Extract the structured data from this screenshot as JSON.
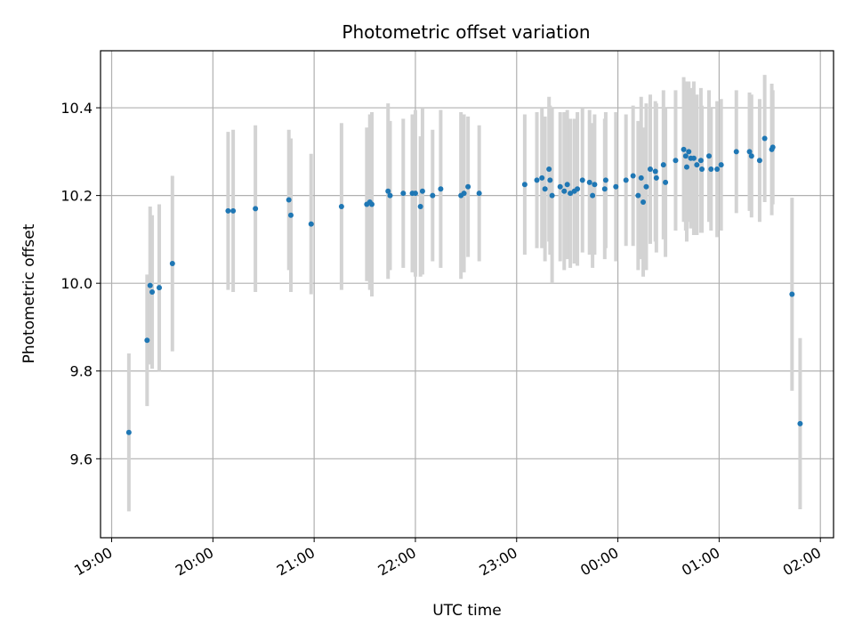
{
  "chart_data": {
    "type": "scatter",
    "title": "Photometric offset variation",
    "xlabel": "UTC time",
    "ylabel": "Photometric offset",
    "grid": true,
    "x_tick_labels": [
      "19:00",
      "20:00",
      "21:00",
      "22:00",
      "23:00",
      "00:00",
      "01:00",
      "02:00"
    ],
    "y_tick_labels": [
      "9.6",
      "9.8",
      "10.0",
      "10.2",
      "10.4"
    ],
    "y_ticks": [
      9.6,
      9.8,
      10.0,
      10.2,
      10.4
    ],
    "xlim_hours": [
      18.89,
      26.13
    ],
    "ylim": [
      9.42,
      10.53
    ],
    "colors": {
      "points": "#1f77b4",
      "error_bars": "#d3d3d3",
      "grid": "#b0b0b0"
    },
    "series": [
      {
        "hours": [
          19.17,
          19.35,
          19.38,
          19.4,
          19.47,
          19.6,
          20.15,
          20.2,
          20.42,
          20.75,
          20.77,
          20.97,
          21.27,
          21.52,
          21.55,
          21.57,
          21.73,
          21.75,
          21.88,
          21.97,
          22.0,
          22.07,
          22.05,
          22.17,
          22.25,
          22.45,
          22.48,
          22.52,
          22.63,
          23.08,
          23.2,
          23.25,
          23.28,
          23.32,
          23.33,
          23.35,
          23.43,
          23.47,
          23.5,
          23.53,
          23.57,
          23.6,
          23.65,
          23.72,
          23.75,
          23.77,
          23.87,
          23.88,
          23.98,
          24.08,
          24.15,
          24.2,
          24.23,
          24.25,
          24.28,
          24.32,
          24.37,
          24.38,
          24.45,
          24.47,
          24.57,
          24.65,
          24.67,
          24.68,
          24.7,
          24.72,
          24.75,
          24.78,
          24.82,
          24.83,
          24.9,
          24.92,
          24.98,
          25.02,
          25.17,
          25.3,
          25.32,
          25.4,
          25.45,
          25.52,
          25.53,
          25.72,
          25.8
        ],
        "y": [
          9.66,
          9.87,
          9.995,
          9.98,
          9.99,
          10.045,
          10.165,
          10.165,
          10.17,
          10.19,
          10.155,
          10.135,
          10.175,
          10.18,
          10.185,
          10.18,
          10.21,
          10.2,
          10.205,
          10.205,
          10.205,
          10.21,
          10.175,
          10.2,
          10.215,
          10.2,
          10.205,
          10.22,
          10.205,
          10.225,
          10.235,
          10.24,
          10.215,
          10.26,
          10.235,
          10.2,
          10.22,
          10.21,
          10.225,
          10.205,
          10.21,
          10.215,
          10.235,
          10.23,
          10.2,
          10.225,
          10.215,
          10.235,
          10.22,
          10.235,
          10.245,
          10.2,
          10.24,
          10.185,
          10.22,
          10.26,
          10.255,
          10.24,
          10.27,
          10.23,
          10.28,
          10.305,
          10.29,
          10.265,
          10.3,
          10.285,
          10.285,
          10.27,
          10.28,
          10.26,
          10.29,
          10.26,
          10.26,
          10.27,
          10.3,
          10.3,
          10.29,
          10.28,
          10.33,
          10.305,
          10.31,
          9.975,
          9.68
        ],
        "err": [
          0.18,
          0.15,
          0.18,
          0.175,
          0.19,
          0.2,
          0.18,
          0.185,
          0.19,
          0.16,
          0.175,
          0.16,
          0.19,
          0.175,
          0.2,
          0.21,
          0.2,
          0.17,
          0.17,
          0.18,
          0.19,
          0.19,
          0.16,
          0.15,
          0.18,
          0.19,
          0.18,
          0.16,
          0.155,
          0.16,
          0.155,
          0.16,
          0.165,
          0.165,
          0.17,
          0.2,
          0.17,
          0.18,
          0.17,
          0.17,
          0.165,
          0.175,
          0.165,
          0.165,
          0.165,
          0.16,
          0.16,
          0.155,
          0.17,
          0.15,
          0.16,
          0.17,
          0.185,
          0.17,
          0.19,
          0.17,
          0.16,
          0.17,
          0.17,
          0.17,
          0.16,
          0.165,
          0.17,
          0.17,
          0.16,
          0.16,
          0.175,
          0.16,
          0.165,
          0.145,
          0.15,
          0.14,
          0.155,
          0.15,
          0.14,
          0.135,
          0.14,
          0.14,
          0.145,
          0.15,
          0.13,
          0.22,
          0.195
        ]
      }
    ]
  }
}
